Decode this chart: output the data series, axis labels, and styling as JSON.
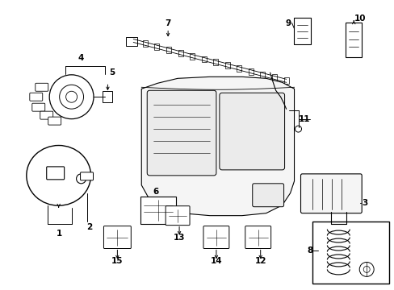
{
  "bg_color": "#ffffff",
  "fig_width": 4.89,
  "fig_height": 3.6,
  "dpi": 100,
  "label_fontsize": 7.5,
  "lw": 0.8
}
